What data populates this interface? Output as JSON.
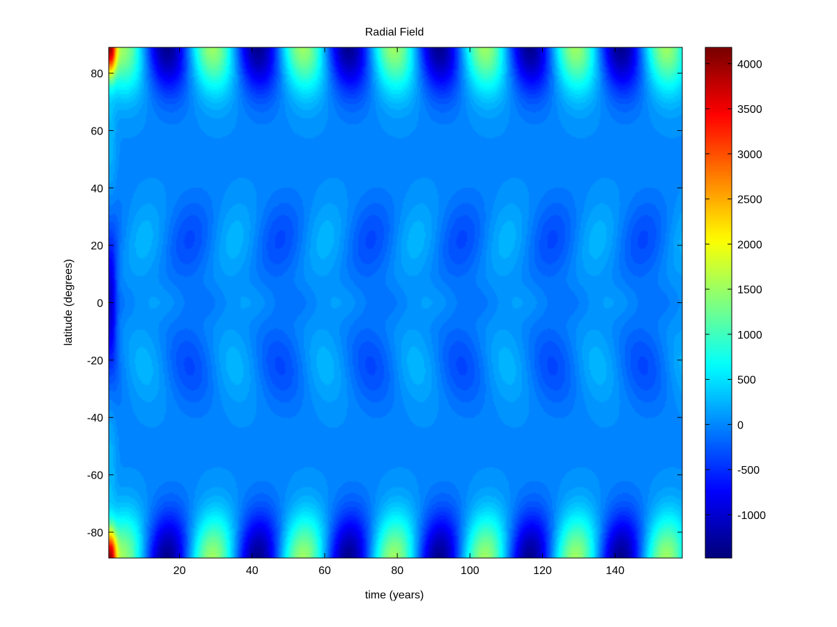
{
  "chart_data": {
    "type": "heatmap",
    "title": "Radial Field",
    "xlabel": "time (years)",
    "ylabel": "latitude (degrees)",
    "xlim": [
      0.5,
      158.5
    ],
    "ylim": [
      -89,
      89
    ],
    "x_ticks": [
      20,
      40,
      60,
      80,
      100,
      120,
      140
    ],
    "y_ticks": [
      80,
      60,
      40,
      20,
      0,
      -20,
      -40,
      -60,
      -80
    ],
    "colorbar": {
      "colormap": "jet",
      "clim": [
        -1480,
        4180
      ],
      "ticks": [
        4000,
        3500,
        3000,
        2500,
        2000,
        1500,
        1000,
        500,
        0,
        -500,
        -1000
      ]
    },
    "cycle_period_years": 25,
    "field_features": [
      {
        "feature": "polar maximum, north",
        "latitude": 84,
        "times": [
          4,
          30,
          55,
          79,
          104,
          129,
          153
        ],
        "value": 1500
      },
      {
        "feature": "polar minimum, north",
        "latitude": 84,
        "times": [
          18,
          43,
          67,
          92,
          117,
          141
        ],
        "value": -1350
      },
      {
        "feature": "polar maximum, south",
        "latitude": -84,
        "times": [
          4,
          30,
          55,
          79,
          104,
          129,
          153
        ],
        "value": 1500
      },
      {
        "feature": "polar minimum, south",
        "latitude": -84,
        "times": [
          18,
          43,
          67,
          92,
          117,
          141
        ],
        "value": -1350
      },
      {
        "feature": "initial transient at pole",
        "time": 1,
        "latitude": 89,
        "value": 4000
      },
      {
        "feature": "background mid latitudes",
        "value": 0
      },
      {
        "feature": "low latitude negative cells",
        "latitudes": [
          20,
          -20
        ],
        "times": [
          22,
          47,
          71,
          96,
          121,
          146
        ],
        "value": -350
      },
      {
        "feature": "low latitude positive cells",
        "latitudes": [
          20,
          -20
        ],
        "times": [
          10,
          35,
          59,
          84,
          109,
          134
        ],
        "value": 250
      }
    ]
  }
}
